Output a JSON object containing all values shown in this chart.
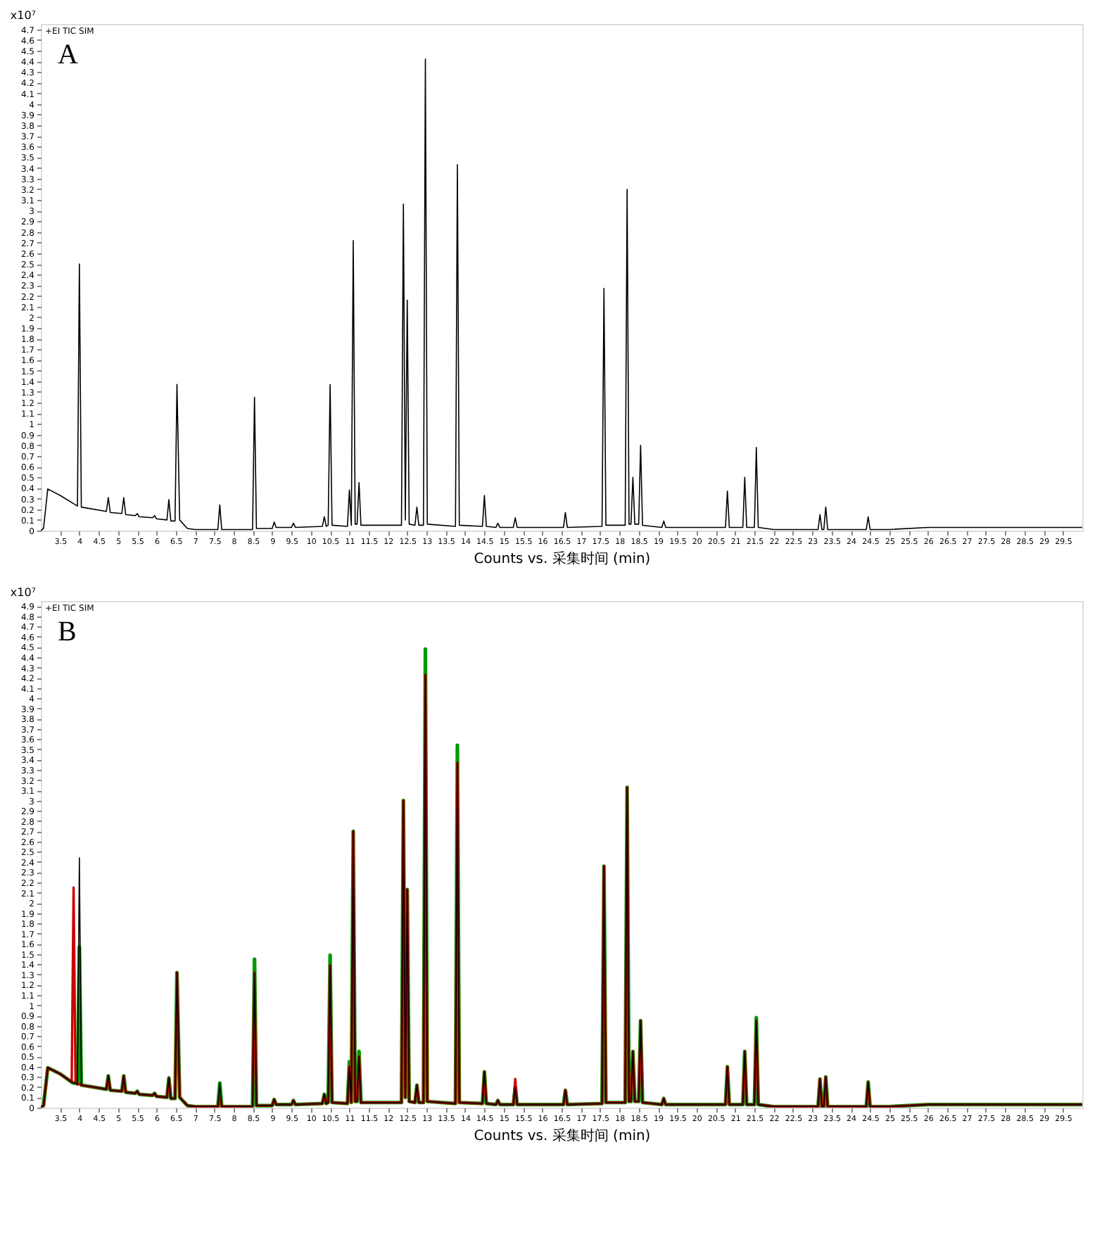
{
  "chart_data": [
    {
      "type": "line",
      "annotations": [
        "A",
        "+EI TIC SIM"
      ],
      "xlabel": "Counts vs. 采集时间 (min)",
      "ylabel": "x10⁷",
      "grid": false,
      "legend": false,
      "line_style": "solid",
      "marker": "none",
      "xlim": [
        3.0,
        30.0
      ],
      "ylim": [
        0,
        4.75
      ],
      "xticks": [
        3.5,
        4,
        4.5,
        5,
        5.5,
        6,
        6.5,
        7,
        7.5,
        8,
        8.5,
        9,
        9.5,
        10,
        10.5,
        11,
        11.5,
        12,
        12.5,
        13,
        13.5,
        14,
        14.5,
        15,
        15.5,
        16,
        16.5,
        17,
        17.5,
        18,
        18.5,
        19,
        19.5,
        20,
        20.5,
        21,
        21.5,
        22,
        22.5,
        23,
        23.5,
        24,
        24.5,
        25,
        25.5,
        26,
        26.5,
        27,
        27.5,
        28,
        28.5,
        29,
        29.5
      ],
      "yticks": [
        0,
        0.1,
        0.2,
        0.3,
        0.4,
        0.5,
        0.6,
        0.7,
        0.8,
        0.9,
        1,
        1.1,
        1.2,
        1.3,
        1.4,
        1.5,
        1.6,
        1.7,
        1.8,
        1.9,
        2,
        2.1,
        2.2,
        2.3,
        2.4,
        2.5,
        2.6,
        2.7,
        2.8,
        2.9,
        3,
        3.1,
        3.2,
        3.3,
        3.4,
        3.5,
        3.6,
        3.7,
        3.8,
        3.9,
        4,
        4.1,
        4.2,
        4.3,
        4.4,
        4.5,
        4.6,
        4.7
      ],
      "x": [
        3.0,
        3.07,
        3.18,
        3.5,
        3.95,
        4.0,
        4.05,
        4.7,
        4.75,
        4.8,
        5.1,
        5.15,
        5.2,
        5.45,
        5.5,
        5.55,
        5.9,
        5.95,
        6.0,
        6.27,
        6.32,
        6.37,
        6.48,
        6.53,
        6.6,
        6.8,
        7.0,
        7.59,
        7.64,
        7.69,
        8.49,
        8.54,
        8.59,
        9.0,
        9.05,
        9.1,
        9.5,
        9.55,
        9.6,
        10.3,
        10.35,
        10.4,
        10.45,
        10.5,
        10.55,
        10.95,
        11.0,
        11.05,
        11.1,
        11.15,
        11.2,
        11.25,
        11.3,
        12.35,
        12.4,
        12.45,
        12.5,
        12.55,
        12.7,
        12.75,
        12.8,
        12.92,
        12.97,
        13.02,
        13.75,
        13.8,
        13.85,
        14.45,
        14.5,
        14.55,
        14.8,
        14.85,
        14.9,
        15.25,
        15.3,
        15.35,
        16.55,
        16.6,
        16.65,
        17.55,
        17.6,
        17.65,
        18.15,
        18.2,
        18.25,
        18.3,
        18.35,
        18.4,
        18.5,
        18.55,
        18.6,
        19.1,
        19.15,
        19.2,
        20.75,
        20.8,
        20.85,
        21.2,
        21.25,
        21.3,
        21.5,
        21.55,
        21.6,
        22.0,
        23.15,
        23.2,
        23.25,
        23.3,
        23.35,
        23.4,
        24.4,
        24.45,
        24.5,
        25.0,
        26.0,
        29.0,
        30.0
      ],
      "series": [
        {
          "color": "#000000",
          "values": [
            0,
            0.02,
            0.39,
            0.33,
            0.23,
            2.5,
            0.22,
            0.18,
            0.31,
            0.17,
            0.16,
            0.31,
            0.15,
            0.14,
            0.16,
            0.13,
            0.12,
            0.14,
            0.11,
            0.1,
            0.29,
            0.09,
            0.09,
            1.37,
            0.1,
            0.02,
            0.01,
            0.01,
            0.24,
            0.01,
            0.01,
            1.25,
            0.02,
            0.02,
            0.08,
            0.03,
            0.03,
            0.07,
            0.03,
            0.04,
            0.13,
            0.04,
            0.05,
            1.37,
            0.05,
            0.04,
            0.38,
            0.05,
            2.72,
            0.06,
            0.06,
            0.45,
            0.05,
            0.05,
            3.06,
            0.1,
            2.16,
            0.06,
            0.05,
            0.22,
            0.05,
            0.05,
            4.42,
            0.06,
            0.04,
            3.43,
            0.05,
            0.04,
            0.33,
            0.04,
            0.03,
            0.07,
            0.03,
            0.03,
            0.12,
            0.03,
            0.03,
            0.17,
            0.03,
            0.04,
            2.27,
            0.05,
            0.05,
            3.2,
            0.06,
            0.06,
            0.5,
            0.06,
            0.06,
            0.8,
            0.05,
            0.03,
            0.09,
            0.03,
            0.03,
            0.37,
            0.03,
            0.03,
            0.5,
            0.03,
            0.03,
            0.78,
            0.03,
            0.01,
            0.01,
            0.15,
            0.01,
            0.01,
            0.22,
            0.01,
            0.01,
            0.13,
            0.01,
            0.01,
            0.03,
            0.03,
            0.03
          ]
        }
      ]
    },
    {
      "type": "line",
      "annotations": [
        "B",
        "+EI TIC SIM"
      ],
      "xlabel": "Counts vs. 采集时间 (min)",
      "ylabel": "x10⁷",
      "grid": false,
      "legend": false,
      "line_style": "solid",
      "marker": "none",
      "xlim": [
        3.0,
        30.0
      ],
      "ylim": [
        0,
        4.95
      ],
      "xticks": [
        3.5,
        4,
        4.5,
        5,
        5.5,
        6,
        6.5,
        7,
        7.5,
        8,
        8.5,
        9,
        9.5,
        10,
        10.5,
        11,
        11.5,
        12,
        12.5,
        13,
        13.5,
        14,
        14.5,
        15,
        15.5,
        16,
        16.5,
        17,
        17.5,
        18,
        18.5,
        19,
        19.5,
        20,
        20.5,
        21,
        21.5,
        22,
        22.5,
        23,
        23.5,
        24,
        24.5,
        25,
        25.5,
        26,
        26.5,
        27,
        27.5,
        28,
        28.5,
        29,
        29.5
      ],
      "yticks": [
        0,
        0.1,
        0.2,
        0.3,
        0.4,
        0.5,
        0.6,
        0.7,
        0.8,
        0.9,
        1,
        1.1,
        1.2,
        1.3,
        1.4,
        1.5,
        1.6,
        1.7,
        1.8,
        1.9,
        2,
        2.1,
        2.2,
        2.3,
        2.4,
        2.5,
        2.6,
        2.7,
        2.8,
        2.9,
        3,
        3.1,
        3.2,
        3.3,
        3.4,
        3.5,
        3.6,
        3.7,
        3.8,
        3.9,
        4,
        4.1,
        4.2,
        4.3,
        4.4,
        4.5,
        4.6,
        4.7,
        4.8,
        4.9
      ],
      "x": [
        3.0,
        3.07,
        3.18,
        3.5,
        3.8,
        3.85,
        3.9,
        3.95,
        4.0,
        4.05,
        4.7,
        4.75,
        4.8,
        5.1,
        5.15,
        5.2,
        5.45,
        5.5,
        5.55,
        5.9,
        5.95,
        6.0,
        6.27,
        6.32,
        6.37,
        6.48,
        6.53,
        6.6,
        6.8,
        7.0,
        7.59,
        7.64,
        7.69,
        8.49,
        8.54,
        8.59,
        9.0,
        9.05,
        9.1,
        9.5,
        9.55,
        9.6,
        10.3,
        10.35,
        10.4,
        10.45,
        10.5,
        10.55,
        10.95,
        11.0,
        11.05,
        11.1,
        11.15,
        11.2,
        11.25,
        11.3,
        12.35,
        12.4,
        12.45,
        12.5,
        12.55,
        12.7,
        12.75,
        12.8,
        12.92,
        12.97,
        13.02,
        13.75,
        13.8,
        13.85,
        14.45,
        14.5,
        14.55,
        14.8,
        14.85,
        14.9,
        15.25,
        15.3,
        15.35,
        16.55,
        16.6,
        16.65,
        17.55,
        17.6,
        17.65,
        18.15,
        18.2,
        18.25,
        18.3,
        18.35,
        18.4,
        18.5,
        18.55,
        18.6,
        19.1,
        19.15,
        19.2,
        20.75,
        20.8,
        20.85,
        21.2,
        21.25,
        21.3,
        21.5,
        21.55,
        21.6,
        22.0,
        23.15,
        23.2,
        23.25,
        23.3,
        23.35,
        23.4,
        24.4,
        24.45,
        24.5,
        25.0,
        26.0,
        29.0,
        30.0
      ],
      "series": [
        {
          "color": "#009900",
          "values": [
            0,
            0.02,
            0.39,
            0.33,
            0.25,
            0.24,
            0.24,
            0.23,
            1.57,
            0.22,
            0.18,
            0.31,
            0.17,
            0.16,
            0.31,
            0.15,
            0.14,
            0.16,
            0.13,
            0.12,
            0.14,
            0.11,
            0.1,
            0.29,
            0.09,
            0.09,
            1.32,
            0.1,
            0.02,
            0.01,
            0.01,
            0.24,
            0.01,
            0.01,
            1.45,
            0.02,
            0.02,
            0.08,
            0.03,
            0.03,
            0.07,
            0.03,
            0.04,
            0.13,
            0.04,
            0.05,
            1.49,
            0.05,
            0.04,
            0.45,
            0.05,
            2.7,
            0.06,
            0.06,
            0.55,
            0.05,
            0.05,
            3.0,
            0.1,
            2.13,
            0.06,
            0.05,
            0.22,
            0.05,
            0.05,
            4.48,
            0.06,
            0.04,
            3.54,
            0.05,
            0.04,
            0.35,
            0.04,
            0.03,
            0.07,
            0.03,
            0.03,
            0.2,
            0.03,
            0.03,
            0.17,
            0.03,
            0.04,
            2.36,
            0.05,
            0.05,
            3.13,
            0.06,
            0.06,
            0.55,
            0.06,
            0.06,
            0.85,
            0.05,
            0.03,
            0.09,
            0.03,
            0.03,
            0.4,
            0.03,
            0.03,
            0.55,
            0.03,
            0.03,
            0.88,
            0.03,
            0.01,
            0.01,
            0.28,
            0.01,
            0.01,
            0.3,
            0.01,
            0.01,
            0.25,
            0.01,
            0.01,
            0.03,
            0.03,
            0.03
          ]
        },
        {
          "color": "#cc0000",
          "values": [
            0,
            0.02,
            0.39,
            0.33,
            0.25,
            2.15,
            0.24,
            0.23,
            0.23,
            0.22,
            0.18,
            0.31,
            0.17,
            0.16,
            0.31,
            0.15,
            0.14,
            0.16,
            0.13,
            0.12,
            0.14,
            0.11,
            0.1,
            0.29,
            0.09,
            0.09,
            1.32,
            0.1,
            0.02,
            0.01,
            0.01,
            0.1,
            0.01,
            0.01,
            1.32,
            0.02,
            0.02,
            0.08,
            0.03,
            0.03,
            0.07,
            0.03,
            0.04,
            0.13,
            0.04,
            0.05,
            1.39,
            0.05,
            0.04,
            0.4,
            0.05,
            2.7,
            0.06,
            0.06,
            0.5,
            0.05,
            0.05,
            3.0,
            0.1,
            2.13,
            0.06,
            0.05,
            0.22,
            0.05,
            0.05,
            4.23,
            0.06,
            0.04,
            3.37,
            0.05,
            0.04,
            0.35,
            0.04,
            0.03,
            0.07,
            0.03,
            0.03,
            0.28,
            0.03,
            0.03,
            0.17,
            0.03,
            0.04,
            2.36,
            0.05,
            0.05,
            3.13,
            0.06,
            0.06,
            0.55,
            0.06,
            0.06,
            0.85,
            0.05,
            0.03,
            0.09,
            0.03,
            0.03,
            0.4,
            0.03,
            0.03,
            0.55,
            0.03,
            0.03,
            0.85,
            0.03,
            0.01,
            0.01,
            0.28,
            0.01,
            0.01,
            0.3,
            0.01,
            0.01,
            0.25,
            0.01,
            0.01,
            0.03,
            0.03,
            0.03
          ]
        },
        {
          "color": "#000000",
          "values": [
            0,
            0.02,
            0.39,
            0.33,
            0.25,
            0.24,
            0.24,
            0.23,
            2.44,
            0.22,
            0.18,
            0.31,
            0.17,
            0.16,
            0.31,
            0.15,
            0.14,
            0.16,
            0.13,
            0.12,
            0.14,
            0.11,
            0.1,
            0.29,
            0.09,
            0.09,
            1.32,
            0.1,
            0.02,
            0.01,
            0.01,
            0.24,
            0.01,
            0.01,
            1.32,
            0.02,
            0.02,
            0.08,
            0.03,
            0.03,
            0.07,
            0.03,
            0.04,
            0.13,
            0.04,
            0.05,
            1.39,
            0.05,
            0.04,
            0.4,
            0.05,
            2.7,
            0.06,
            0.06,
            0.5,
            0.05,
            0.05,
            3.0,
            0.1,
            2.13,
            0.06,
            0.05,
            0.22,
            0.05,
            0.05,
            4.23,
            0.06,
            0.04,
            3.37,
            0.05,
            0.04,
            0.35,
            0.04,
            0.03,
            0.07,
            0.03,
            0.03,
            0.2,
            0.03,
            0.03,
            0.17,
            0.03,
            0.04,
            2.36,
            0.05,
            0.05,
            3.13,
            0.06,
            0.06,
            0.55,
            0.06,
            0.06,
            0.85,
            0.05,
            0.03,
            0.09,
            0.03,
            0.03,
            0.4,
            0.03,
            0.03,
            0.55,
            0.03,
            0.03,
            0.85,
            0.03,
            0.01,
            0.01,
            0.28,
            0.01,
            0.01,
            0.3,
            0.01,
            0.01,
            0.25,
            0.01,
            0.01,
            0.03,
            0.03,
            0.03
          ]
        }
      ]
    }
  ]
}
